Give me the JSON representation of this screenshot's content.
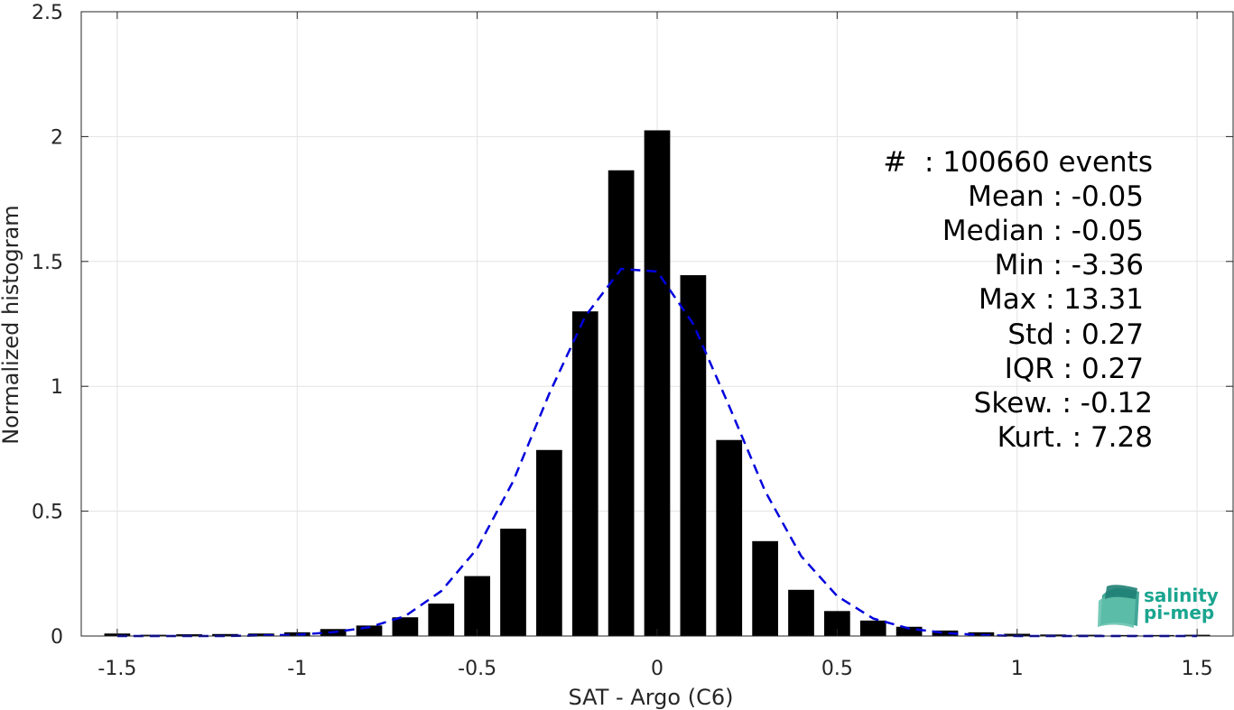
{
  "chart_data": {
    "type": "bar",
    "xlabel": "SAT - Argo (C6)",
    "ylabel": "Normalized histogram",
    "xlim": [
      -1.6,
      1.6
    ],
    "ylim": [
      0,
      2.5
    ],
    "xticks": [
      -1.5,
      -1,
      -0.5,
      0,
      0.5,
      1,
      1.5
    ],
    "xtick_labels": [
      "-1.5",
      "-1",
      "-0.5",
      "0",
      "0.5",
      "1",
      "1.5"
    ],
    "yticks": [
      0,
      0.5,
      1,
      1.5,
      2,
      2.5
    ],
    "ytick_labels": [
      "0",
      "0.5",
      "1",
      "1.5",
      "2",
      "2.5"
    ],
    "grid": true,
    "bar_color": "#000000",
    "fit_color": "#0000dd",
    "bins": [
      {
        "x": -1.5,
        "y": 0.01
      },
      {
        "x": -1.4,
        "y": 0.005
      },
      {
        "x": -1.3,
        "y": 0.007
      },
      {
        "x": -1.2,
        "y": 0.008
      },
      {
        "x": -1.1,
        "y": 0.01
      },
      {
        "x": -1.0,
        "y": 0.015
      },
      {
        "x": -0.9,
        "y": 0.028
      },
      {
        "x": -0.8,
        "y": 0.042
      },
      {
        "x": -0.7,
        "y": 0.075
      },
      {
        "x": -0.6,
        "y": 0.13
      },
      {
        "x": -0.5,
        "y": 0.24
      },
      {
        "x": -0.4,
        "y": 0.43
      },
      {
        "x": -0.3,
        "y": 0.745
      },
      {
        "x": -0.2,
        "y": 1.3
      },
      {
        "x": -0.1,
        "y": 1.865
      },
      {
        "x": 0.0,
        "y": 2.025
      },
      {
        "x": 0.1,
        "y": 1.445
      },
      {
        "x": 0.2,
        "y": 0.785
      },
      {
        "x": 0.3,
        "y": 0.38
      },
      {
        "x": 0.4,
        "y": 0.185
      },
      {
        "x": 0.5,
        "y": 0.1
      },
      {
        "x": 0.6,
        "y": 0.062
      },
      {
        "x": 0.7,
        "y": 0.037
      },
      {
        "x": 0.8,
        "y": 0.022
      },
      {
        "x": 0.9,
        "y": 0.015
      },
      {
        "x": 1.0,
        "y": 0.009
      },
      {
        "x": 1.1,
        "y": 0.006
      },
      {
        "x": 1.2,
        "y": 0.005
      },
      {
        "x": 1.3,
        "y": 0.004
      },
      {
        "x": 1.4,
        "y": 0.004
      },
      {
        "x": 1.5,
        "y": 0.005
      }
    ],
    "fit_curve": [
      {
        "x": -1.5,
        "y": 0.0
      },
      {
        "x": -1.2,
        "y": 0.0
      },
      {
        "x": -1.0,
        "y": 0.005
      },
      {
        "x": -0.9,
        "y": 0.015
      },
      {
        "x": -0.8,
        "y": 0.035
      },
      {
        "x": -0.7,
        "y": 0.08
      },
      {
        "x": -0.6,
        "y": 0.18
      },
      {
        "x": -0.5,
        "y": 0.35
      },
      {
        "x": -0.4,
        "y": 0.62
      },
      {
        "x": -0.3,
        "y": 0.97
      },
      {
        "x": -0.2,
        "y": 1.28
      },
      {
        "x": -0.1,
        "y": 1.47
      },
      {
        "x": 0.0,
        "y": 1.46
      },
      {
        "x": 0.1,
        "y": 1.25
      },
      {
        "x": 0.2,
        "y": 0.92
      },
      {
        "x": 0.3,
        "y": 0.58
      },
      {
        "x": 0.4,
        "y": 0.32
      },
      {
        "x": 0.5,
        "y": 0.16
      },
      {
        "x": 0.6,
        "y": 0.07
      },
      {
        "x": 0.7,
        "y": 0.03
      },
      {
        "x": 0.8,
        "y": 0.012
      },
      {
        "x": 0.9,
        "y": 0.004
      },
      {
        "x": 1.0,
        "y": 0.0
      },
      {
        "x": 1.5,
        "y": 0.0
      }
    ]
  },
  "stats": {
    "events": "#  : 100660 events",
    "mean": "Mean : -0.05",
    "median": "Median : -0.05",
    "min": "Min : -3.36",
    "max": "Max : 13.31",
    "std": "Std : 0.27",
    "iqr": "IQR : 0.27",
    "skew": "Skew. : -0.12",
    "kurt": "Kurt. : 7.28"
  },
  "logo": {
    "line1": "salinity",
    "line2": "pi-mep",
    "color": "#1aa58f"
  }
}
